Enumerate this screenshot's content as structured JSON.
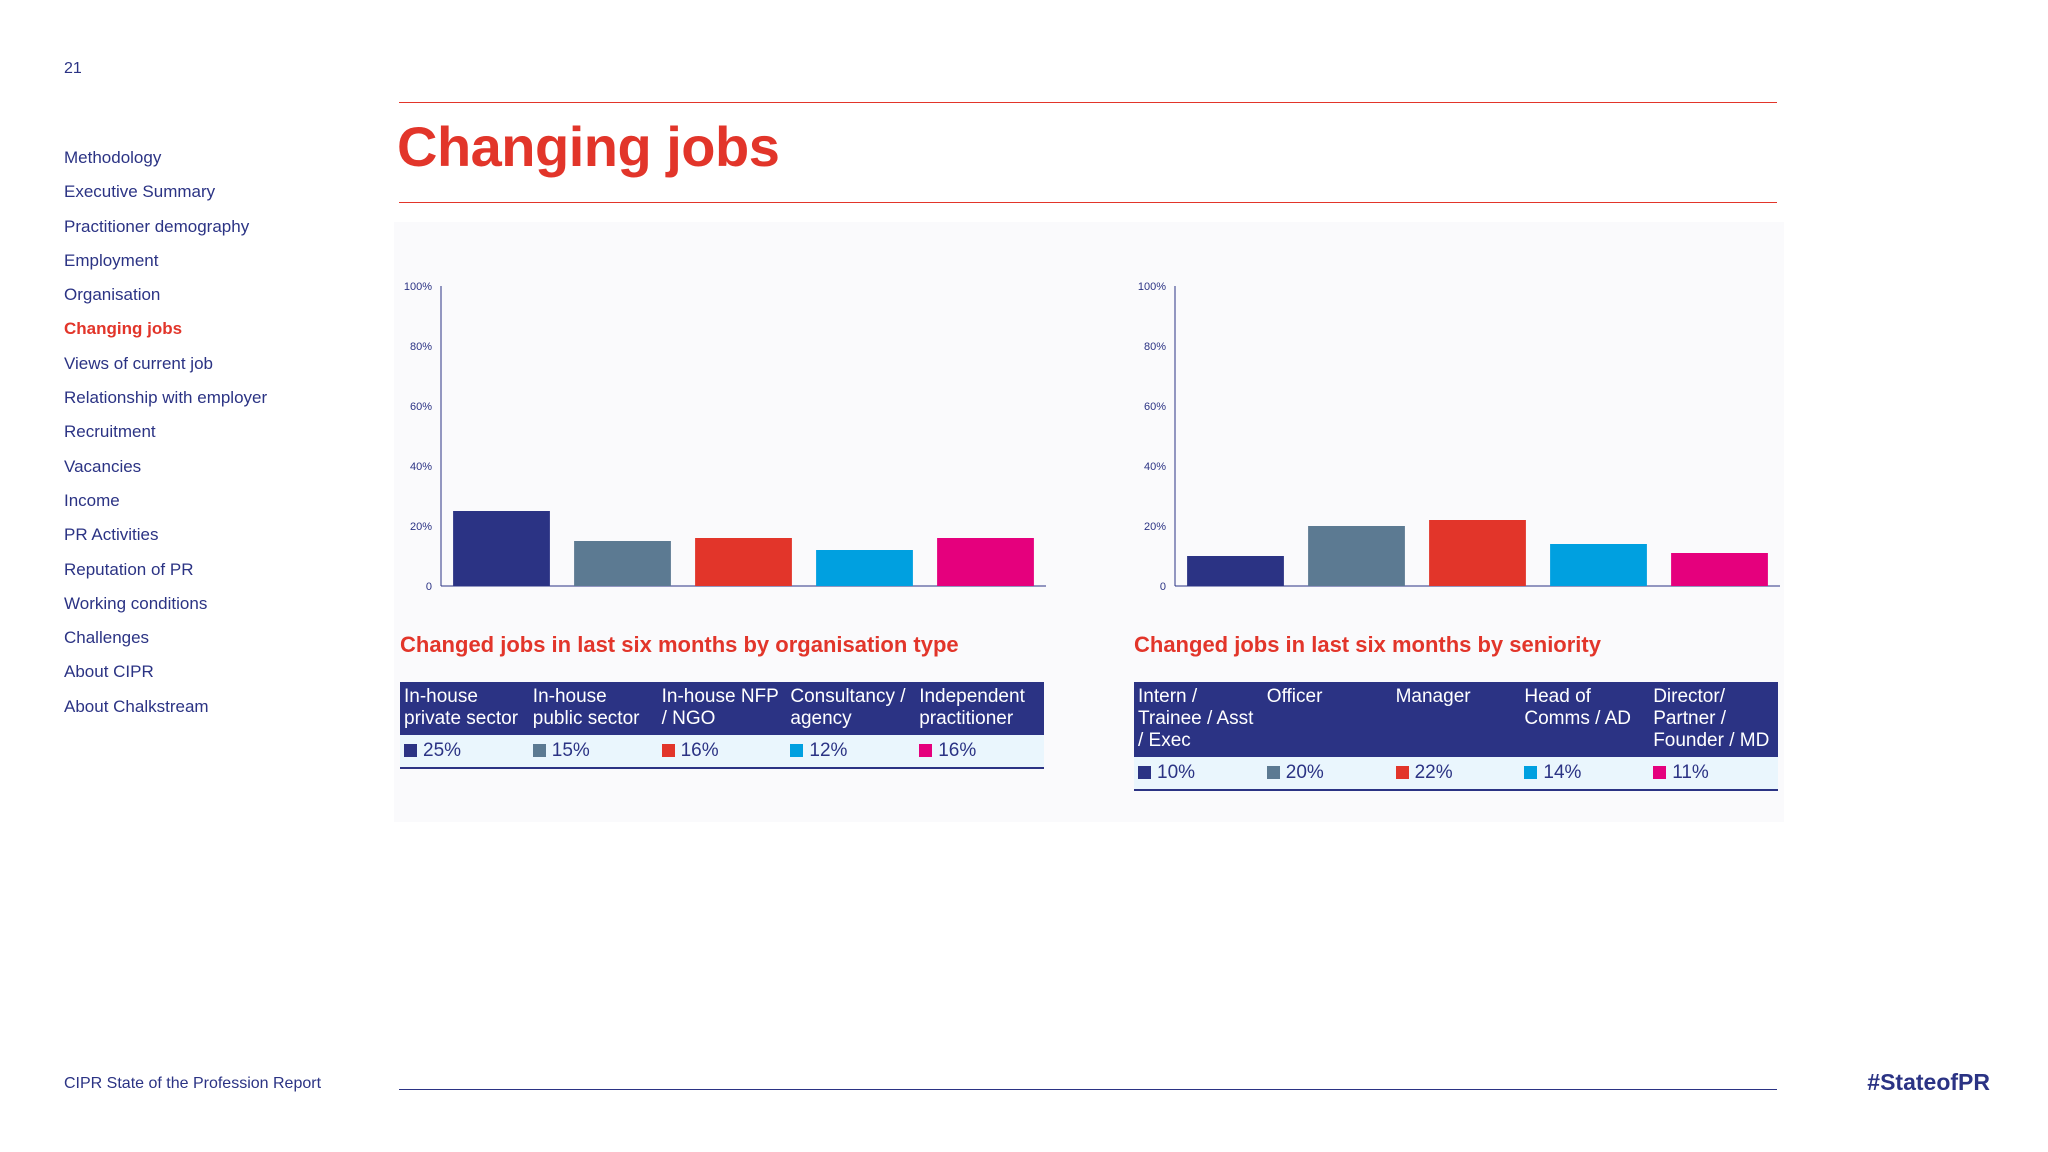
{
  "page_number": "21",
  "nav": [
    {
      "label": "Methodology"
    },
    {
      "label": "Executive Summary"
    },
    {
      "label": "Practitioner demography"
    },
    {
      "label": "Employment"
    },
    {
      "label": "Organisation"
    },
    {
      "label": "Changing jobs",
      "active": true
    },
    {
      "label": "Views of current job"
    },
    {
      "label": "Relationship with employer"
    },
    {
      "label": "Recruitment"
    },
    {
      "label": "Vacancies"
    },
    {
      "label": "Income"
    },
    {
      "label": "PR Activities"
    },
    {
      "label": "Reputation of PR"
    },
    {
      "label": "Working conditions"
    },
    {
      "label": "Challenges"
    },
    {
      "label": "About CIPR"
    },
    {
      "label": "About Chalkstream"
    }
  ],
  "title": "Changing jobs",
  "chart_data": [
    {
      "type": "bar",
      "title": "Changed jobs in last six months by organisation type",
      "categories": [
        "In-house private sector",
        "In-house public sector",
        "In-house NFP / NGO",
        "Consultancy / agency",
        "Independent practitioner"
      ],
      "values": [
        25,
        15,
        16,
        12,
        16
      ],
      "value_labels": [
        "25%",
        "15%",
        "16%",
        "12%",
        "16%"
      ],
      "colors": [
        "#2b3384",
        "#5c7a92",
        "#e2352a",
        "#00a0e0",
        "#e5007d"
      ],
      "ylim": [
        0,
        100
      ],
      "yticks": [
        0,
        20,
        40,
        60,
        80,
        100
      ],
      "ytick_labels": [
        "0",
        "20%",
        "40%",
        "60%",
        "80%",
        "100%"
      ],
      "grid": false
    },
    {
      "type": "bar",
      "title": "Changed jobs in last six months by seniority",
      "categories": [
        "Intern / Trainee / Asst / Exec",
        "Officer",
        "Manager",
        "Head of Comms / AD",
        "Director/ Partner / Founder / MD"
      ],
      "values": [
        10,
        20,
        22,
        14,
        11
      ],
      "value_labels": [
        "10%",
        "20%",
        "22%",
        "14%",
        "11%"
      ],
      "colors": [
        "#2b3384",
        "#5c7a92",
        "#e2352a",
        "#00a0e0",
        "#e5007d"
      ],
      "ylim": [
        0,
        100
      ],
      "yticks": [
        0,
        20,
        40,
        60,
        80,
        100
      ],
      "ytick_labels": [
        "0",
        "20%",
        "40%",
        "60%",
        "80%",
        "100%"
      ],
      "grid": false
    }
  ],
  "footer": {
    "report_name": "CIPR State of the Profession Report",
    "hashtag": "#StateofPR"
  }
}
